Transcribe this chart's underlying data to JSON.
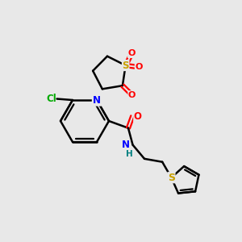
{
  "bg_color": "#e8e8e8",
  "line_color": "#000000",
  "bond_width": 1.8,
  "figsize": [
    3.0,
    3.0
  ],
  "dpi": 100,
  "atom_colors": {
    "N": "#0000ff",
    "S": "#c8a000",
    "O": "#ff0000",
    "Cl": "#00aa00",
    "NH": "#008080"
  }
}
